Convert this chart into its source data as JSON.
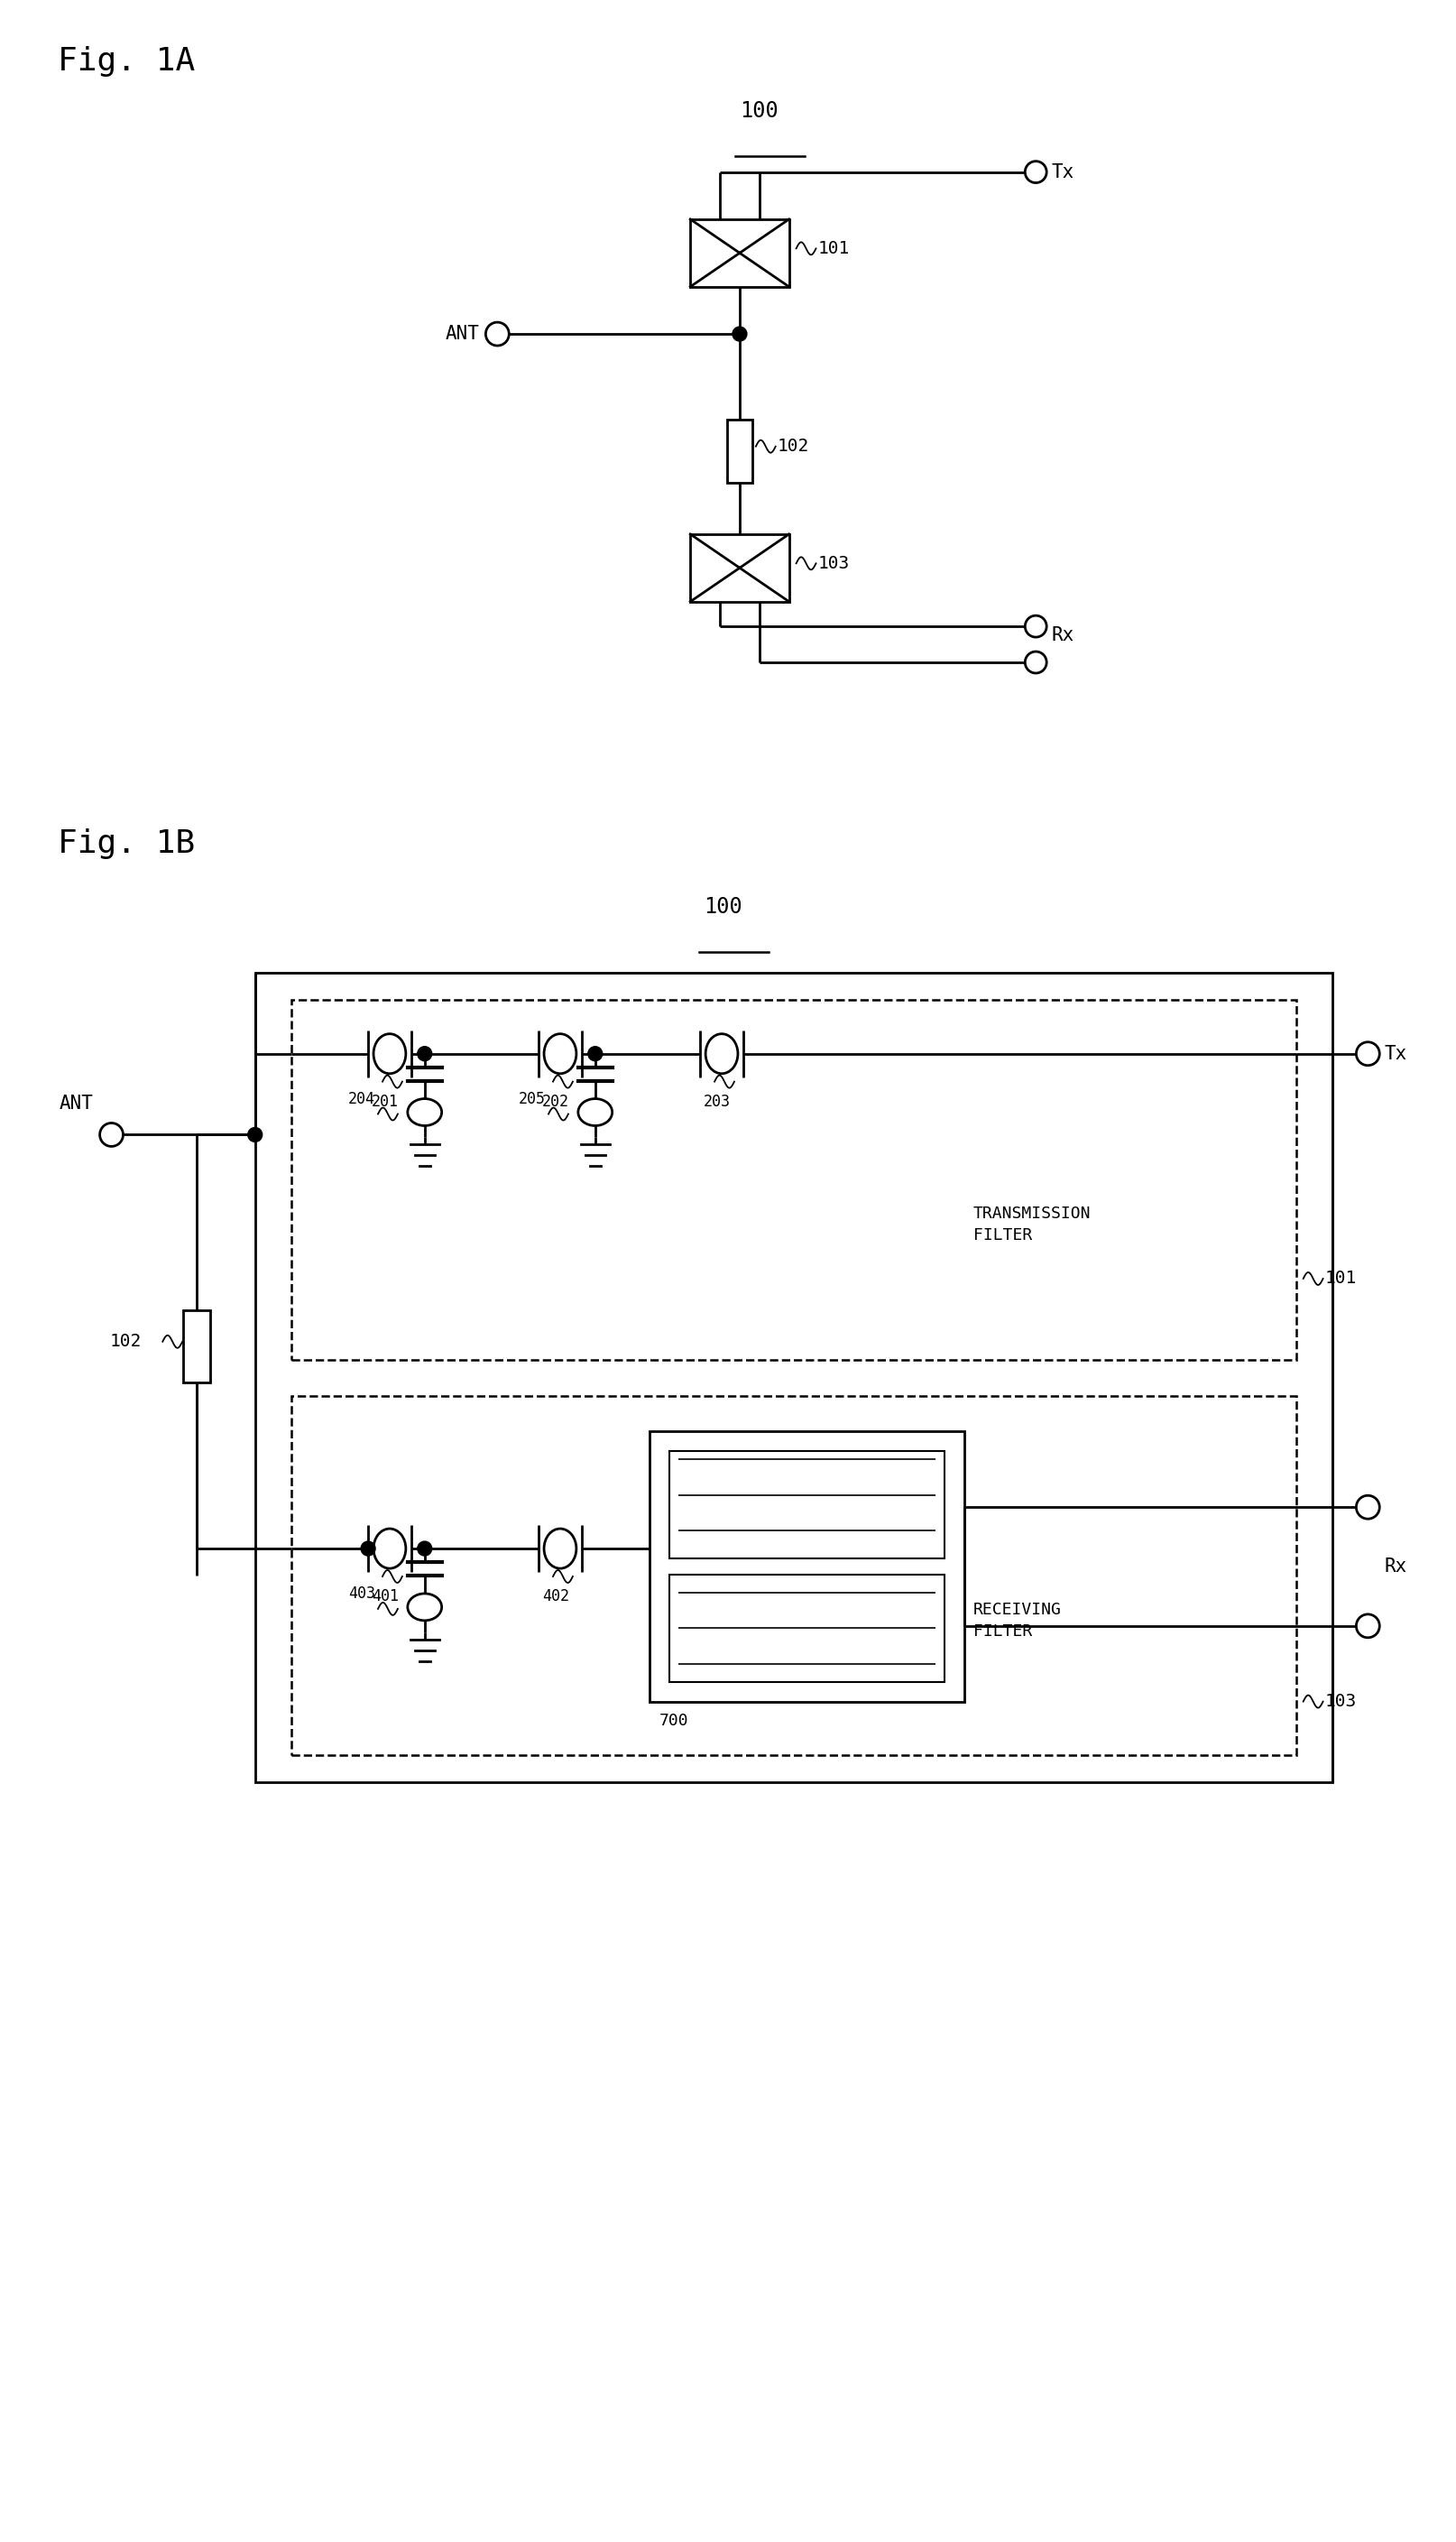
{
  "bg_color": "#ffffff",
  "fig_width": 16.15,
  "fig_height": 28.17,
  "fig1a_label": "Fig. 1A",
  "fig1b_label": "Fig. 1B",
  "label_100_1": "100",
  "label_100_2": "100",
  "label_101a": "101",
  "label_102a": "102",
  "label_103a": "103",
  "label_ANT_1": "ANT",
  "label_Tx_1": "Tx",
  "label_Rx_1": "Rx",
  "label_ANT_2": "ANT",
  "label_Tx_2": "Tx",
  "label_Rx_2": "Rx",
  "label_201": "201",
  "label_202": "202",
  "label_203": "203",
  "label_204": "204",
  "label_205": "205",
  "label_401": "401",
  "label_402": "402",
  "label_403": "403",
  "label_700": "700",
  "label_trans_filter": "TRANSMISSION\nFILTER",
  "label_recv_filter": "RECEIVING\nFILTER",
  "label_101b": "101",
  "label_102b": "102",
  "label_103b": "103"
}
